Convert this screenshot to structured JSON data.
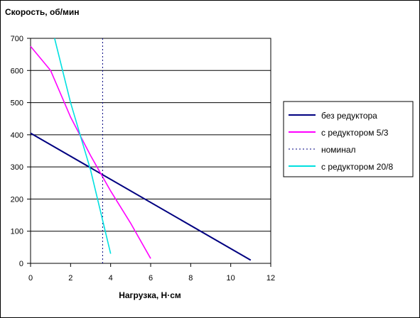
{
  "chart_data": {
    "type": "line",
    "ylabel": "Скорость, об/мин",
    "xlabel": "Нагрузка, Н·см",
    "xlim": [
      0,
      12
    ],
    "ylim": [
      0,
      700
    ],
    "xticks": [
      0,
      2,
      4,
      6,
      8,
      10,
      12
    ],
    "yticks": [
      0,
      100,
      200,
      300,
      400,
      500,
      600,
      700
    ],
    "grid": "horizontal",
    "legend_position": "right",
    "series": [
      {
        "name": "без редуктора",
        "color": "#000080",
        "style": "solid",
        "x": [
          0,
          11
        ],
        "y": [
          405,
          10
        ]
      },
      {
        "name": "с редуктором 5/3",
        "color": "#ff00ff",
        "style": "solid",
        "x": [
          0,
          1,
          2,
          3,
          4,
          5,
          6
        ],
        "y": [
          675,
          600,
          455,
          335,
          225,
          125,
          15
        ]
      },
      {
        "name": "номинал",
        "color": "#000080",
        "style": "dotted",
        "x": [
          3.6,
          3.6
        ],
        "y": [
          0,
          700
        ]
      },
      {
        "name": "с редуктором 20/8",
        "color": "#00e0e0",
        "style": "solid",
        "x": [
          1.2,
          2,
          3,
          4
        ],
        "y": [
          700,
          500,
          290,
          30
        ]
      }
    ]
  }
}
